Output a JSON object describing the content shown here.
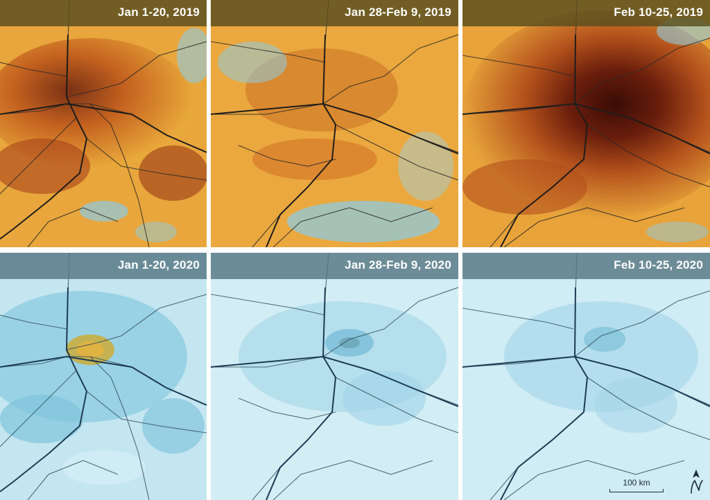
{
  "panels": [
    {
      "label": "Jan 1-20, 2019",
      "row": "2019",
      "level": "high"
    },
    {
      "label": "Jan 28-Feb 9, 2019",
      "row": "2019",
      "level": "medium"
    },
    {
      "label": "Feb 10-25, 2019",
      "row": "2019",
      "level": "very-high"
    },
    {
      "label": "Jan 1-20, 2020",
      "row": "2020",
      "level": "low"
    },
    {
      "label": "Jan 28-Feb 9, 2020",
      "row": "2020",
      "level": "very-low"
    },
    {
      "label": "Feb 10-25, 2020",
      "row": "2020",
      "level": "very-low"
    }
  ],
  "scale_bar": {
    "label": "100 km"
  },
  "north_arrow": {
    "icon": "north-arrow-icon"
  },
  "colors": {
    "high_concentration": "#5a1a08",
    "medium_concentration": "#e9a83a",
    "low_concentration": "#bfe4ee",
    "label_bar_2019": "#584e1e",
    "label_bar_2020": "#567684"
  }
}
